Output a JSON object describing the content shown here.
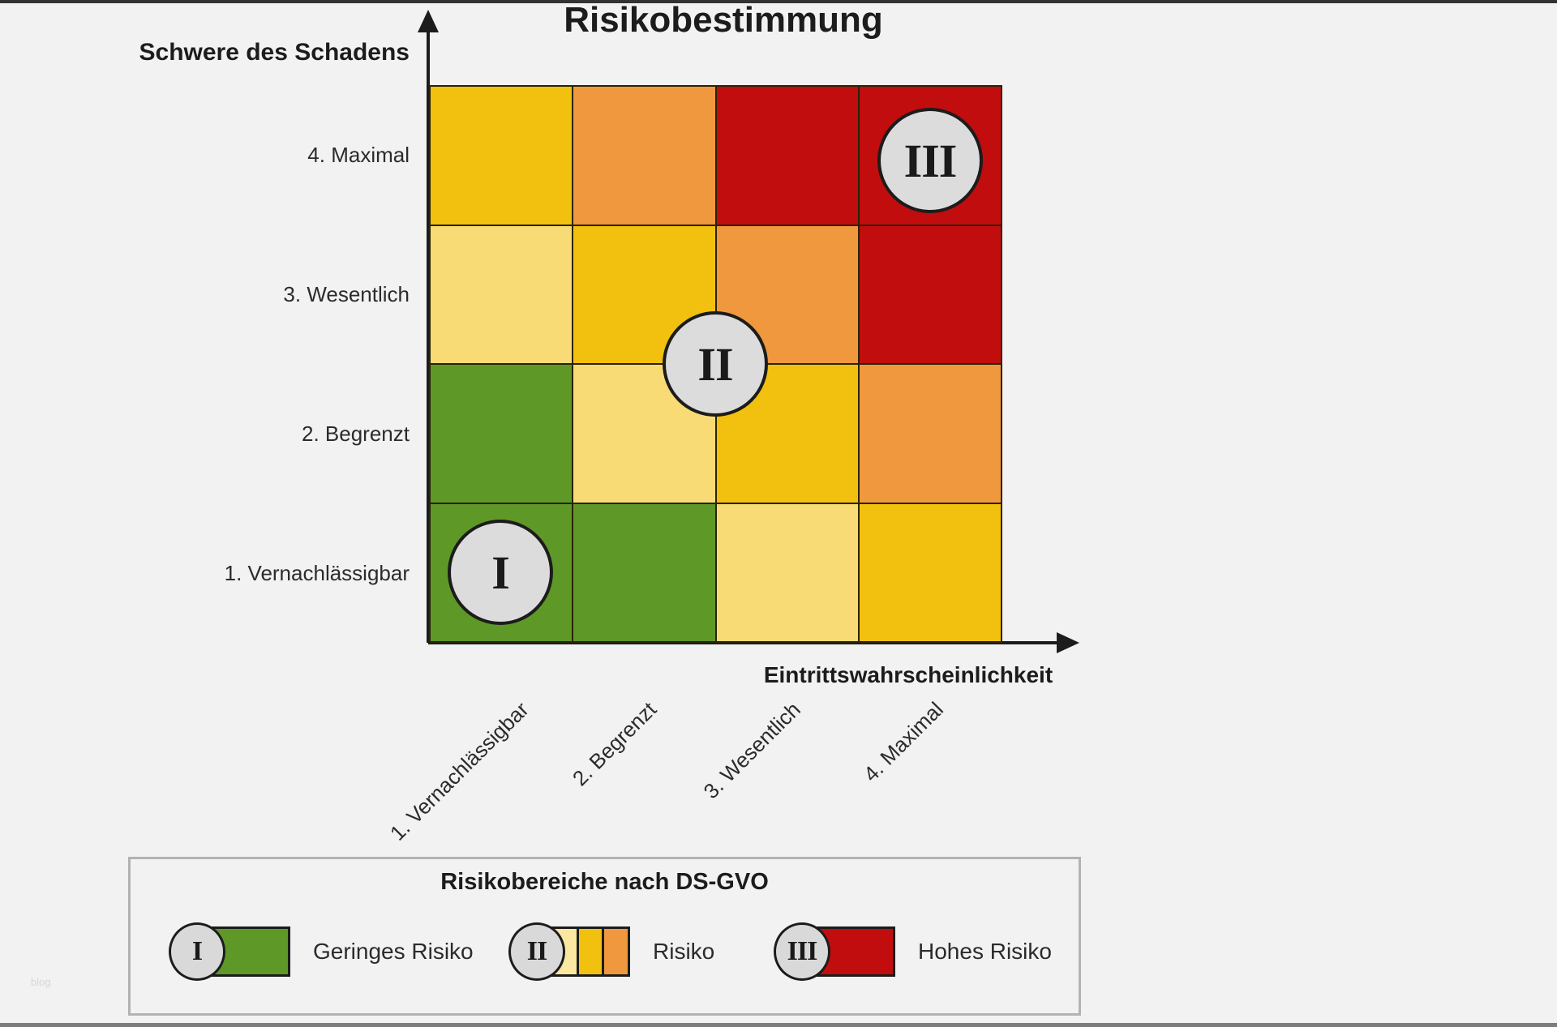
{
  "page": {
    "background": "#f2f2f2",
    "watermark": "blog"
  },
  "colors": {
    "green": "#5E9826",
    "pale_yellow": "#F8DB74",
    "gold": "#F2C00E",
    "orange": "#F0983D",
    "red": "#C10D0D",
    "legend_pale": "#FAE7A0",
    "marker_fill": "#DCDCDC",
    "ink": "#1C1C1C"
  },
  "legend": {
    "title": "Risikobereiche nach DS-GVO",
    "items": [
      {
        "numeral": "I",
        "label": "Geringes Risiko",
        "swatch": [
          "green"
        ]
      },
      {
        "numeral": "II",
        "label": "Risiko",
        "swatch": [
          "legend_pale",
          "gold",
          "orange"
        ]
      },
      {
        "numeral": "III",
        "label": "Hohes Risiko",
        "swatch": [
          "red"
        ]
      }
    ]
  },
  "chart_data": {
    "type": "heatmap",
    "title": "Risikobestimmung",
    "xlabel": "Eintrittswahrscheinlichkeit",
    "ylabel": "Schwere des Schadens",
    "x_categories": [
      "1. Vernachlässigbar",
      "2. Begrenzt",
      "3. Wesentlich",
      "4. Maximal"
    ],
    "y_categories": [
      "1. Vernachlässigbar",
      "2. Begrenzt",
      "3. Wesentlich",
      "4. Maximal"
    ],
    "cell_colors_rows_top_to_bottom": [
      [
        "gold",
        "orange",
        "red",
        "red"
      ],
      [
        "pale_yellow",
        "gold",
        "orange",
        "red"
      ],
      [
        "green",
        "pale_yellow",
        "gold",
        "orange"
      ],
      [
        "green",
        "green",
        "pale_yellow",
        "gold"
      ]
    ],
    "risk_level_by_color": {
      "green": "Geringes Risiko",
      "pale_yellow": "Risiko",
      "gold": "Risiko",
      "orange": "Risiko",
      "red": "Hohes Risiko"
    },
    "annotations": [
      {
        "label": "I",
        "x": "1. Vernachlässigbar",
        "y": "1. Vernachlässigbar",
        "meaning": "Geringes Risiko"
      },
      {
        "label": "II",
        "x": "zwischen 2. Begrenzt und 3. Wesentlich",
        "y": "zwischen 2. Begrenzt und 3. Wesentlich",
        "meaning": "Risiko"
      },
      {
        "label": "III",
        "x": "4. Maximal",
        "y": "4. Maximal",
        "meaning": "Hohes Risiko"
      }
    ],
    "grid_lines": true,
    "legend_position": "bottom"
  }
}
